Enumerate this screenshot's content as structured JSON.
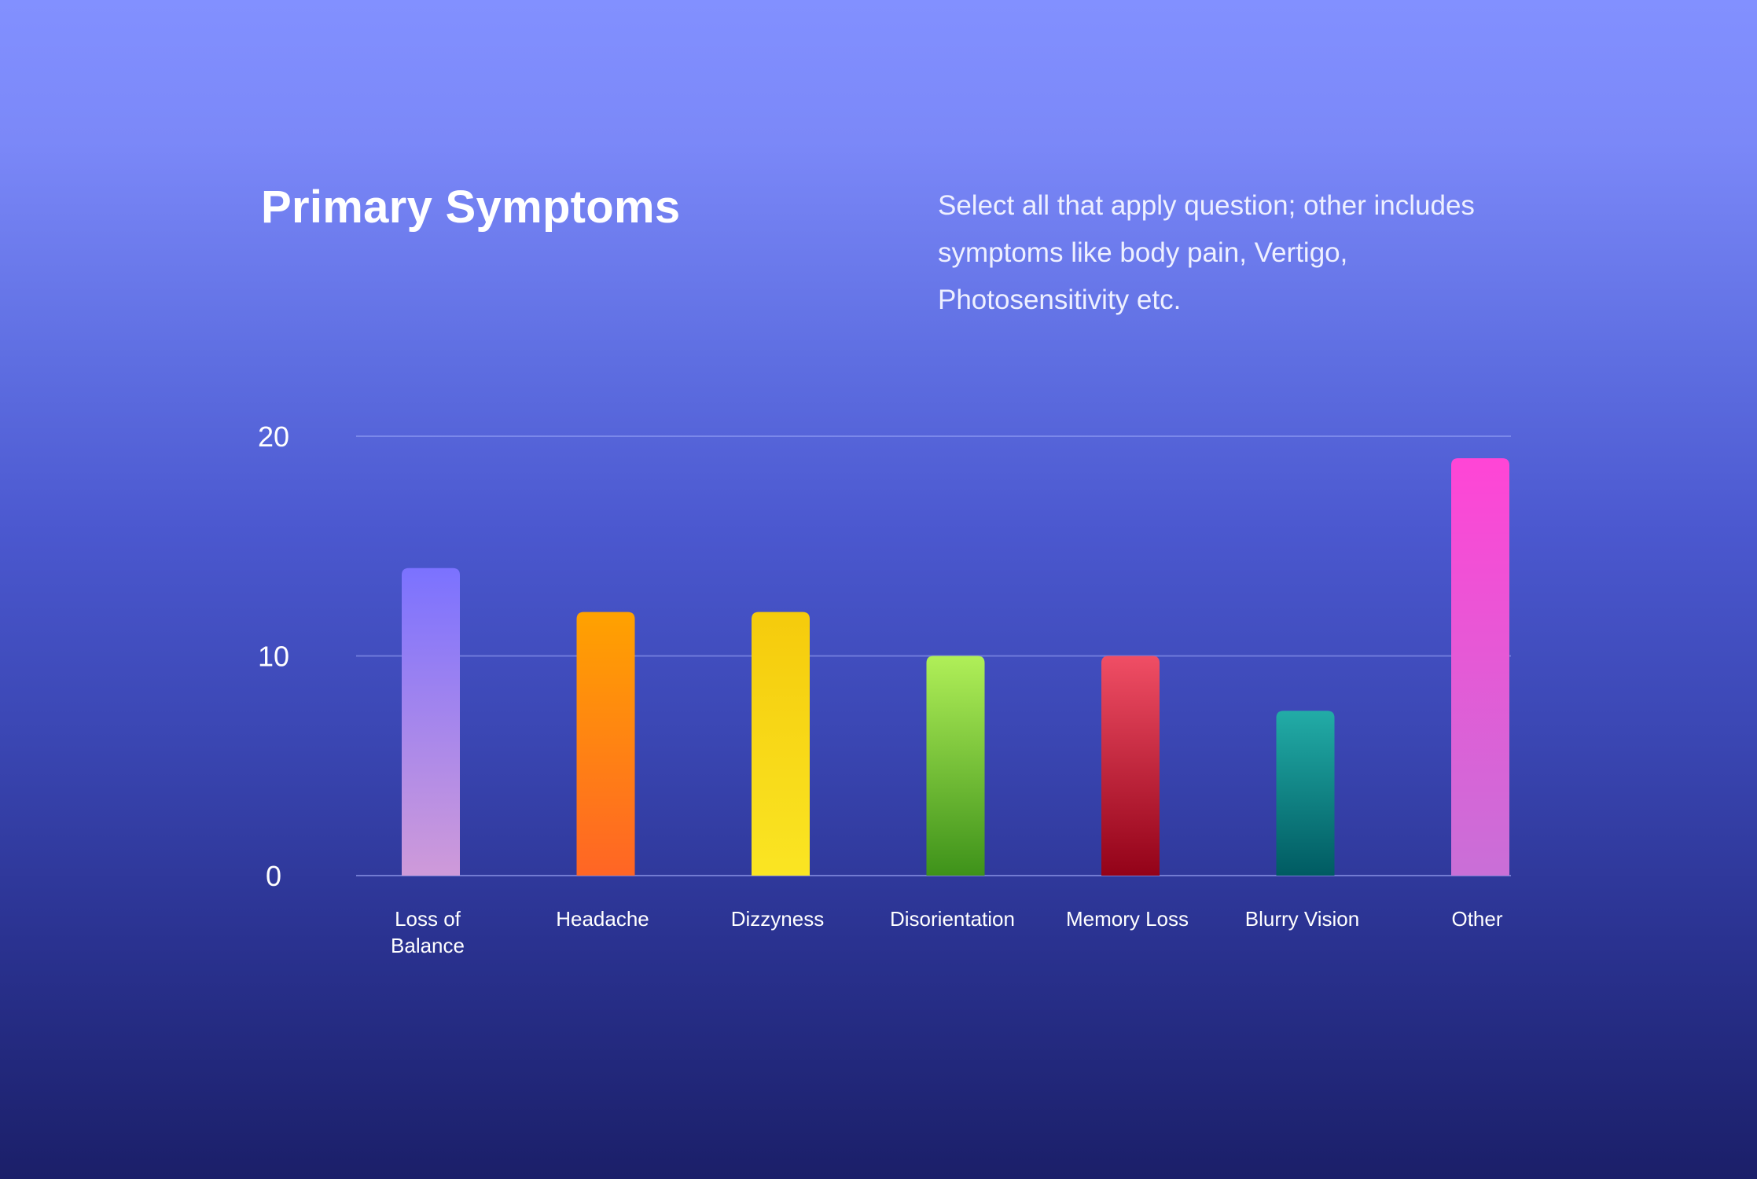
{
  "header": {
    "title": "Primary Symptoms",
    "note_lines": [
      "Select all that apply question; other includes",
      "symptoms like body pain, Vertigo,",
      "Photosensitivity etc."
    ]
  },
  "chart_data": {
    "type": "bar",
    "title": "Primary Symptoms",
    "xlabel": "",
    "ylabel": "",
    "ylim": [
      0,
      20
    ],
    "yticks": [
      0,
      10,
      20
    ],
    "grid": true,
    "categories": [
      "Loss of Balance",
      "Headache",
      "Dizzyness",
      "Disorientation",
      "Memory Loss",
      "Blurry Vision",
      "Other"
    ],
    "category_label_lines": [
      [
        "Loss of",
        "Balance"
      ],
      [
        "Headache"
      ],
      [
        "Dizzyness"
      ],
      [
        "Disorientation"
      ],
      [
        "Memory Loss"
      ],
      [
        "Blurry Vision"
      ],
      [
        "Other"
      ]
    ],
    "values": [
      14,
      12,
      12,
      10,
      10,
      7.5,
      19
    ],
    "colors": [
      [
        "#7b72ff",
        "#cf9ad9"
      ],
      [
        "#ffa200",
        "#ff6525"
      ],
      [
        "#f5cb0c",
        "#fae523"
      ],
      [
        "#b0ef58",
        "#3e921a"
      ],
      [
        "#f04e65",
        "#930218"
      ],
      [
        "#22aca7",
        "#005b62"
      ],
      [
        "#ff45d6",
        "#c96fd7"
      ]
    ]
  }
}
